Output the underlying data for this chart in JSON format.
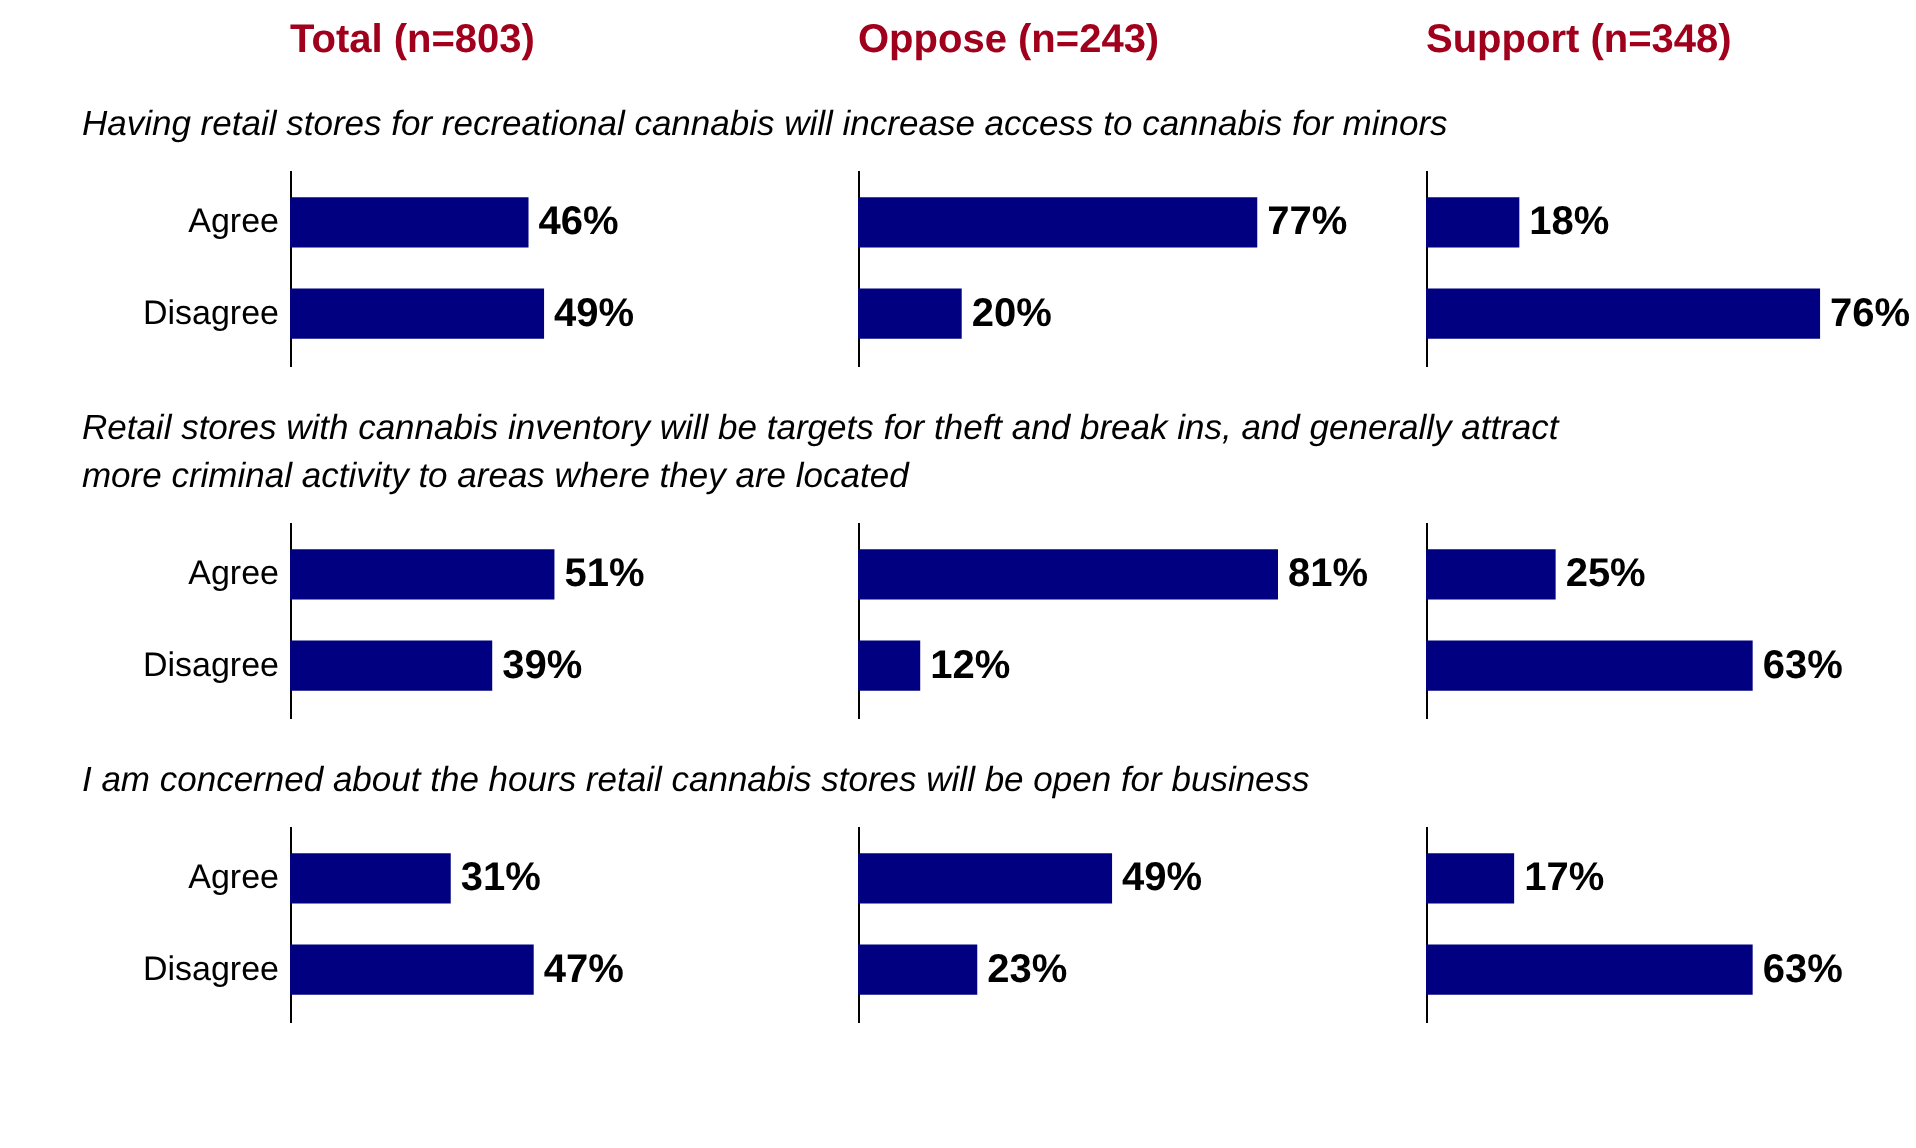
{
  "chart_data": [
    {
      "type": "bar",
      "orientation": "horizontal",
      "title": "Total (n=803)",
      "subtitle": "Having retail stores for recreational cannabis will increase access to cannabis for minors",
      "categories": [
        "Agree",
        "Disagree"
      ],
      "values": [
        46,
        49
      ],
      "value_labels": [
        "46%",
        "49%"
      ],
      "color": "#000080",
      "tick_labels": "y"
    },
    {
      "type": "bar",
      "orientation": "horizontal",
      "title": "Oppose (n=243)",
      "categories": [
        null,
        null
      ],
      "values": [
        77,
        20
      ],
      "value_labels": [
        "77%",
        "20%"
      ],
      "color": "#000080",
      "tick_labels": false
    },
    {
      "type": "bar",
      "orientation": "horizontal",
      "title": "Support (n=348)",
      "categories": [
        null,
        null
      ],
      "values": [
        18,
        76
      ],
      "value_labels": [
        "18%",
        "76%"
      ],
      "color": "#000080",
      "tick_labels": false
    },
    {
      "type": "bar",
      "orientation": "horizontal",
      "subtitle": "Retail stores with cannabis inventory will be targets for theft and break ins, and generally attract more criminal activity to areas where they are located",
      "categories": [
        "Agree",
        "Disagree"
      ],
      "values": [
        51,
        39
      ],
      "value_labels": [
        "51%",
        "39%"
      ],
      "color": "#000080",
      "tick_labels": "y"
    },
    {
      "type": "bar",
      "orientation": "horizontal",
      "categories": [
        null,
        null
      ],
      "values": [
        81,
        12
      ],
      "value_labels": [
        "81%",
        "12%"
      ],
      "color": "#000080",
      "tick_labels": false
    },
    {
      "type": "bar",
      "orientation": "horizontal",
      "categories": [
        null,
        null
      ],
      "values": [
        25,
        63
      ],
      "value_labels": [
        "25%",
        "63%"
      ],
      "color": "#000080",
      "tick_labels": false
    },
    {
      "type": "bar",
      "orientation": "horizontal",
      "subtitle": "I am concerned about the hours retail cannabis stores will be open for business",
      "categories": [
        "Agree",
        "Disagree"
      ],
      "values": [
        31,
        47
      ],
      "value_labels": [
        "31%",
        "47%"
      ],
      "color": "#000080",
      "tick_labels": "y"
    },
    {
      "type": "bar",
      "orientation": "horizontal",
      "categories": [
        null,
        null
      ],
      "values": [
        49,
        23
      ],
      "value_labels": [
        "49%",
        "23%"
      ],
      "color": "#000080",
      "tick_labels": false
    },
    {
      "type": "bar",
      "orientation": "horizontal",
      "categories": [
        null,
        null
      ],
      "values": [
        17,
        63
      ],
      "value_labels": [
        "17%",
        "63%"
      ],
      "color": "#000080",
      "tick_labels": false
    }
  ]
}
